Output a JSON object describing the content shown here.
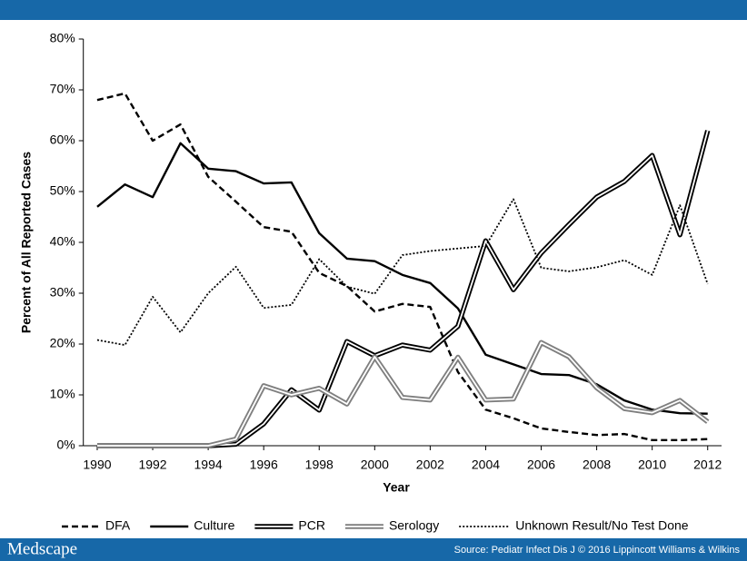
{
  "header_bar": {
    "color": "#1768a8"
  },
  "footer": {
    "logo": "Medscape",
    "source": "Source: Pediatr Infect Dis J © 2016 Lippincott Williams & Wilkins",
    "color": "#1768a8"
  },
  "chart_data": {
    "type": "line",
    "x_label": "Year",
    "y_label": "Percent of All Reported Cases",
    "x": [
      1990,
      1991,
      1992,
      1993,
      1994,
      1995,
      1996,
      1997,
      1998,
      1999,
      2000,
      2001,
      2002,
      2003,
      2004,
      2005,
      2006,
      2007,
      2008,
      2009,
      2010,
      2011,
      2012
    ],
    "xlim": [
      1989.5,
      2012.5
    ],
    "xticks": [
      1990,
      1992,
      1994,
      1996,
      1998,
      2000,
      2002,
      2004,
      2006,
      2008,
      2010,
      2012
    ],
    "ylim": [
      0,
      80
    ],
    "yticks": [
      {
        "value": 0,
        "label": "0%"
      },
      {
        "value": 10,
        "label": "10%"
      },
      {
        "value": 20,
        "label": "20%"
      },
      {
        "value": 30,
        "label": "30%"
      },
      {
        "value": 40,
        "label": "40%"
      },
      {
        "value": 50,
        "label": "50%"
      },
      {
        "value": 60,
        "label": "60%"
      },
      {
        "value": 70,
        "label": "70%"
      },
      {
        "value": 80,
        "label": "80%"
      }
    ],
    "grid": false,
    "legend": "bottom",
    "series": [
      {
        "name": "DFA",
        "color": "#000000",
        "style": "dashed",
        "values": [
          68,
          69.3,
          60,
          63.2,
          52.9,
          48,
          43,
          42.1,
          34,
          31.4,
          26.4,
          27.9,
          27.3,
          14.5,
          7.1,
          5.4,
          3.4,
          2.7,
          2.1,
          2.3,
          1.1,
          1.1,
          1.3
        ]
      },
      {
        "name": "Culture",
        "color": "#000000",
        "style": "solid",
        "values": [
          47,
          51.4,
          48.9,
          59.5,
          54.5,
          54,
          51.6,
          51.8,
          41.8,
          36.8,
          36.3,
          33.6,
          32,
          27,
          17.9,
          16,
          14.1,
          13.9,
          12.1,
          8.9,
          7.1,
          6.4,
          6.3
        ]
      },
      {
        "name": "PCR",
        "color": "#000000",
        "style": "double",
        "values": [
          0,
          0,
          0,
          0,
          0,
          0.3,
          4.3,
          11,
          7,
          20.5,
          17.7,
          19.8,
          18.8,
          23.5,
          40.3,
          30.7,
          37.9,
          43.5,
          48.9,
          52,
          57.1,
          41.5,
          62
        ]
      },
      {
        "name": "Serology",
        "color": "#7f7f7f",
        "style": "double",
        "values": [
          0,
          0,
          0,
          0,
          0,
          1.3,
          11.8,
          10,
          11.3,
          8.2,
          17.5,
          9.5,
          9,
          17.4,
          9,
          9.2,
          20.3,
          17.5,
          11.4,
          7.3,
          6.5,
          8.9,
          4.7
        ]
      },
      {
        "name": "Unknown Result/No Test Done",
        "color": "#000000",
        "style": "dotted",
        "values": [
          20.8,
          19.8,
          29.3,
          22.3,
          30,
          35.2,
          27.1,
          27.7,
          36.7,
          31.3,
          29.9,
          37.5,
          38.3,
          38.8,
          39.3,
          48.5,
          35,
          34.3,
          35.1,
          36.5,
          33.6,
          47.3,
          31.8
        ]
      }
    ]
  }
}
